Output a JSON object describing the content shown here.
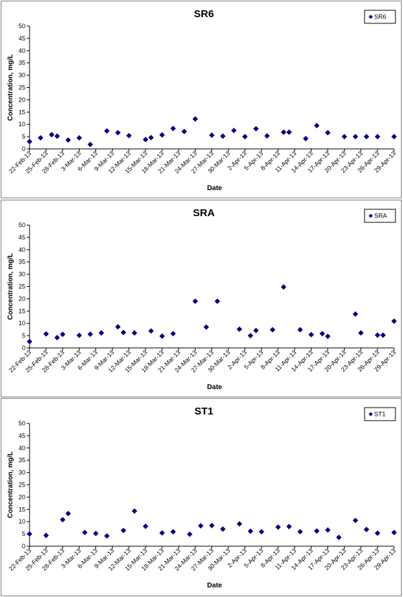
{
  "chart_data": [
    {
      "type": "scatter",
      "title": "SR6",
      "xlabel": "Date",
      "ylabel": "Concentration, mg/L",
      "ylim": [
        0,
        50
      ],
      "yticks": [
        0,
        5,
        10,
        15,
        20,
        25,
        30,
        35,
        40,
        45,
        50
      ],
      "xlim": [
        "2013-02-22",
        "2013-04-29"
      ],
      "xticks": [
        "22-Feb-13",
        "25-Feb-13",
        "28-Feb-13",
        "3-Mar-13",
        "6-Mar-13",
        "9-Mar-13",
        "12-Mar-13",
        "15-Mar-13",
        "18-Mar-13",
        "21-Mar-13",
        "24-Mar-13",
        "27-Mar-13",
        "30-Mar-13",
        "2-Apr-13",
        "5-Apr-13",
        "8-Apr-13",
        "11-Apr-13",
        "14-Apr-13",
        "17-Apr-13",
        "20-Apr-13",
        "23-Apr-13",
        "26-Apr-13",
        "29-Apr-13"
      ],
      "legend": "top-right",
      "grid": false,
      "color": "#000080",
      "series": [
        {
          "name": "SR6",
          "x": [
            "2013-02-22",
            "2013-02-24",
            "2013-02-26",
            "2013-02-27",
            "2013-03-01",
            "2013-03-03",
            "2013-03-05",
            "2013-03-08",
            "2013-03-10",
            "2013-03-12",
            "2013-03-15",
            "2013-03-16",
            "2013-03-18",
            "2013-03-20",
            "2013-03-22",
            "2013-03-24",
            "2013-03-27",
            "2013-03-29",
            "2013-03-31",
            "2013-04-02",
            "2013-04-04",
            "2013-04-06",
            "2013-04-09",
            "2013-04-10",
            "2013-04-13",
            "2013-04-15",
            "2013-04-17",
            "2013-04-20",
            "2013-04-22",
            "2013-04-24",
            "2013-04-26",
            "2013-04-29"
          ],
          "values": [
            3.0,
            4.5,
            5.8,
            5.2,
            3.6,
            4.5,
            1.8,
            7.3,
            6.6,
            5.4,
            3.8,
            4.6,
            5.7,
            8.3,
            7.1,
            12.2,
            5.6,
            5.2,
            7.5,
            5.0,
            8.2,
            5.3,
            6.8,
            6.8,
            4.2,
            9.5,
            6.6,
            5.0,
            5.0,
            5.0,
            5.0,
            5.0
          ]
        }
      ]
    },
    {
      "type": "scatter",
      "title": "SRA",
      "xlabel": "Date",
      "ylabel": "Concentration, mg/L",
      "ylim": [
        0,
        50
      ],
      "yticks": [
        0,
        5,
        10,
        15,
        20,
        25,
        30,
        35,
        40,
        45,
        50
      ],
      "xlim": [
        "2013-02-22",
        "2013-04-29"
      ],
      "xticks": [
        "22-Feb-13",
        "25-Feb-13",
        "28-Feb-13",
        "3-Mar-13",
        "6-Mar-13",
        "9-Mar-13",
        "12-Mar-13",
        "15-Mar-13",
        "18-Mar-13",
        "21-Mar-13",
        "24-Mar-13",
        "27-Mar-13",
        "30-Mar-13",
        "2-Apr-13",
        "5-Apr-13",
        "8-Apr-13",
        "11-Apr-13",
        "14-Apr-13",
        "17-Apr-13",
        "20-Apr-13",
        "23-Apr-13",
        "26-Apr-13",
        "29-Apr-13"
      ],
      "legend": "top-right",
      "grid": false,
      "color": "#000080",
      "series": [
        {
          "name": "SRA",
          "x": [
            "2013-02-22",
            "2013-02-25",
            "2013-02-27",
            "2013-02-28",
            "2013-03-03",
            "2013-03-05",
            "2013-03-07",
            "2013-03-10",
            "2013-03-11",
            "2013-03-13",
            "2013-03-16",
            "2013-03-18",
            "2013-03-20",
            "2013-03-24",
            "2013-03-26",
            "2013-03-28",
            "2013-04-01",
            "2013-04-03",
            "2013-04-04",
            "2013-04-07",
            "2013-04-09",
            "2013-04-12",
            "2013-04-14",
            "2013-04-16",
            "2013-04-17",
            "2013-04-22",
            "2013-04-23",
            "2013-04-26",
            "2013-04-27",
            "2013-04-29"
          ],
          "values": [
            2.6,
            5.7,
            4.2,
            5.5,
            5.1,
            5.6,
            6.1,
            8.6,
            6.3,
            6.1,
            6.9,
            4.8,
            5.8,
            19.0,
            8.5,
            19.0,
            7.6,
            5.0,
            7.1,
            7.4,
            24.8,
            7.4,
            5.4,
            5.8,
            4.7,
            13.8,
            6.1,
            5.2,
            5.2,
            10.9
          ]
        }
      ]
    },
    {
      "type": "scatter",
      "title": "ST1",
      "xlabel": "Date",
      "ylabel": "Concentration, mg/L",
      "ylim": [
        0,
        50
      ],
      "yticks": [
        0,
        5,
        10,
        15,
        20,
        25,
        30,
        35,
        40,
        45,
        50
      ],
      "xlim": [
        "2013-02-22",
        "2013-04-29"
      ],
      "xticks": [
        "22-Feb-13",
        "25-Feb-13",
        "28-Feb-13",
        "3-Mar-13",
        "6-Mar-13",
        "9-Mar-13",
        "12-Mar-13",
        "15-Mar-13",
        "18-Mar-13",
        "21-Mar-13",
        "24-Mar-13",
        "27-Mar-13",
        "30-Mar-13",
        "2-Apr-13",
        "5-Apr-13",
        "8-Apr-13",
        "11-Apr-13",
        "14-Apr-13",
        "17-Apr-13",
        "20-Apr-13",
        "23-Apr-13",
        "26-Apr-13",
        "29-Apr-13"
      ],
      "legend": "top-right",
      "grid": false,
      "color": "#000080",
      "series": [
        {
          "name": "ST1",
          "x": [
            "2013-02-22",
            "2013-02-25",
            "2013-02-28",
            "2013-03-01",
            "2013-03-04",
            "2013-03-06",
            "2013-03-08",
            "2013-03-11",
            "2013-03-13",
            "2013-03-15",
            "2013-03-18",
            "2013-03-20",
            "2013-03-23",
            "2013-03-25",
            "2013-03-27",
            "2013-03-29",
            "2013-04-01",
            "2013-04-03",
            "2013-04-05",
            "2013-04-08",
            "2013-04-10",
            "2013-04-12",
            "2013-04-15",
            "2013-04-17",
            "2013-04-19",
            "2013-04-22",
            "2013-04-24",
            "2013-04-26",
            "2013-04-29"
          ],
          "values": [
            5.0,
            4.4,
            10.8,
            13.3,
            5.6,
            5.2,
            4.2,
            6.4,
            14.3,
            8.1,
            5.4,
            5.9,
            4.9,
            8.3,
            8.4,
            7.0,
            9.1,
            6.1,
            5.9,
            7.8,
            8.0,
            5.9,
            6.2,
            6.6,
            3.6,
            10.5,
            6.8,
            5.3,
            5.6
          ]
        }
      ]
    }
  ]
}
